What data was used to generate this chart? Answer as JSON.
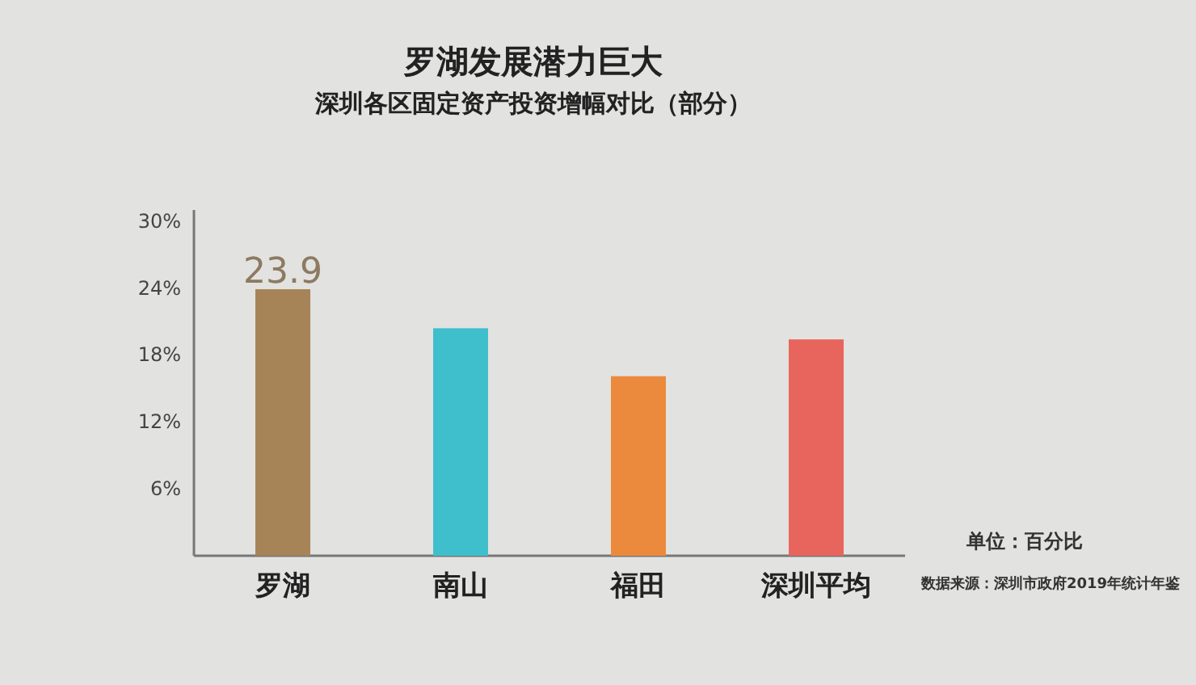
{
  "chart_data": {
    "type": "bar",
    "title": "罗湖发展潜力巨大",
    "subtitle": "深圳各区固定资产投资增幅对比（部分）",
    "categories": [
      "罗湖",
      "南山",
      "福田",
      "深圳平均"
    ],
    "values": [
      23.9,
      20.4,
      16.1,
      19.4
    ],
    "colors": [
      "#a68457",
      "#3fbfcc",
      "#eb8a3c",
      "#e8655e"
    ],
    "value_labels": [
      "23.9",
      null,
      null,
      null
    ],
    "ylim": [
      0,
      31
    ],
    "yticks": [
      {
        "value": 6,
        "label": "6%"
      },
      {
        "value": 12,
        "label": "12%"
      },
      {
        "value": 18,
        "label": "18%"
      },
      {
        "value": 24,
        "label": "24%"
      },
      {
        "value": 30,
        "label": "30%"
      }
    ],
    "annotations": [
      "单位：百分比",
      "数据来源：深圳市政府2019年统计年鉴"
    ]
  }
}
